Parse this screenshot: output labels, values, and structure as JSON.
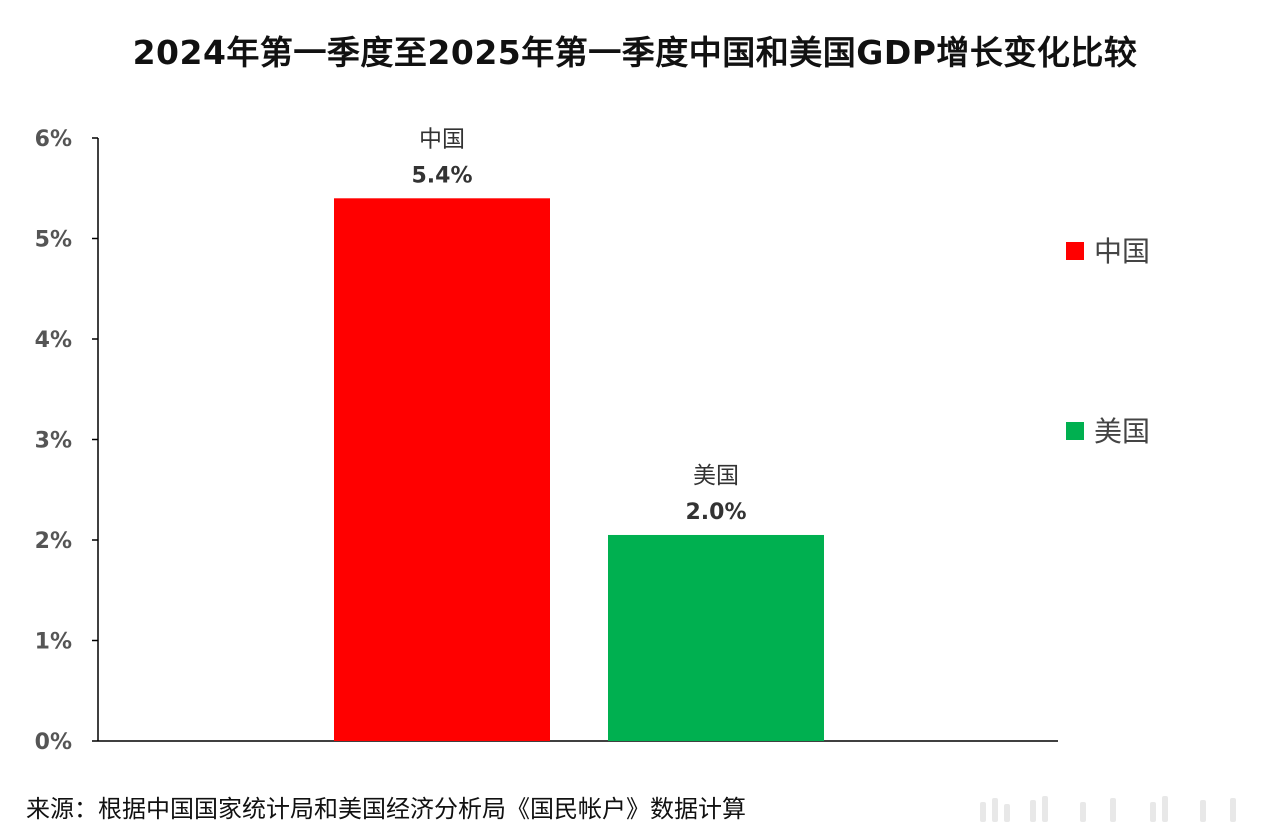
{
  "title": "2024年第一季度至2025年第一季度中国和美国GDP增长变化比较",
  "source": "来源：根据中国国家统计局和美国经济分析局《国民帐户》数据计算",
  "chart_data": {
    "type": "bar",
    "title": "2024年第一季度至2025年第一季度中国和美国GDP增长变化比较",
    "categories": [
      "中国",
      "美国"
    ],
    "values": [
      5.4,
      2.05
    ],
    "value_labels": [
      "5.4%",
      "2.0%"
    ],
    "unit": "%",
    "colors": [
      "#ff0000",
      "#00b050"
    ],
    "ylim": [
      0,
      6
    ],
    "y_ticks": [
      0,
      1,
      2,
      3,
      4,
      5,
      6
    ],
    "y_tick_labels": [
      "0%",
      "1%",
      "2%",
      "3%",
      "4%",
      "5%",
      "6%"
    ],
    "grid": false,
    "legend": {
      "placement": "right",
      "entries": [
        {
          "name": "中国",
          "color": "#ff0000"
        },
        {
          "name": "美国",
          "color": "#00b050"
        }
      ]
    }
  }
}
